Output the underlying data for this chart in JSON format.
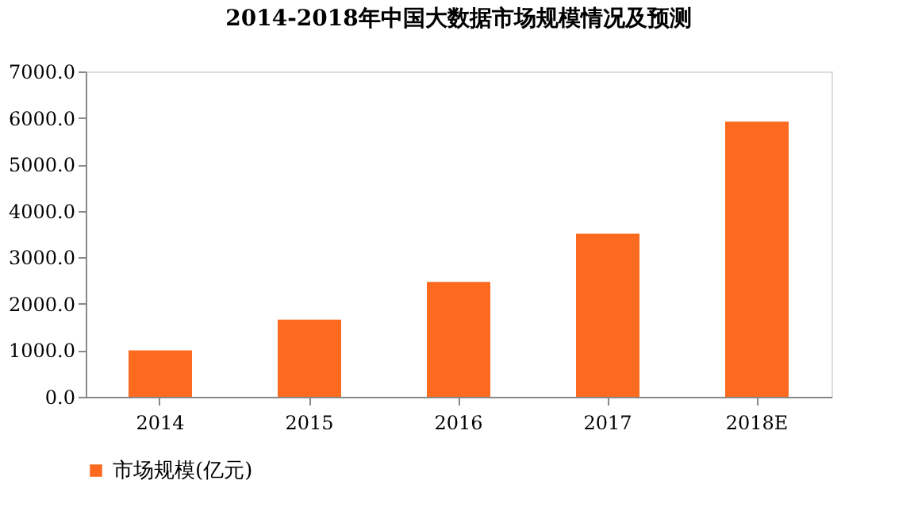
{
  "chart_data": {
    "type": "bar",
    "title": "2014-2018年中国大数据市场规模情况及预测",
    "categories": [
      "2014",
      "2015",
      "2016",
      "2017",
      "2018E"
    ],
    "series": [
      {
        "name": "市场规模(亿元)",
        "color": "#fb6a1e",
        "values": [
          1000,
          1660,
          2470,
          3510,
          5920
        ]
      }
    ],
    "ylim": [
      0,
      7000
    ],
    "yticks": [
      {
        "value": 0,
        "label": "0.0"
      },
      {
        "value": 1000,
        "label": "1000.0"
      },
      {
        "value": 2000,
        "label": "2000.0"
      },
      {
        "value": 3000,
        "label": "3000.0"
      },
      {
        "value": 4000,
        "label": "4000.0"
      },
      {
        "value": 5000,
        "label": "5000.0"
      },
      {
        "value": 6000,
        "label": "6000.0"
      },
      {
        "value": 7000,
        "label": "7000.0"
      }
    ],
    "grid": false,
    "legend": "bottom"
  }
}
